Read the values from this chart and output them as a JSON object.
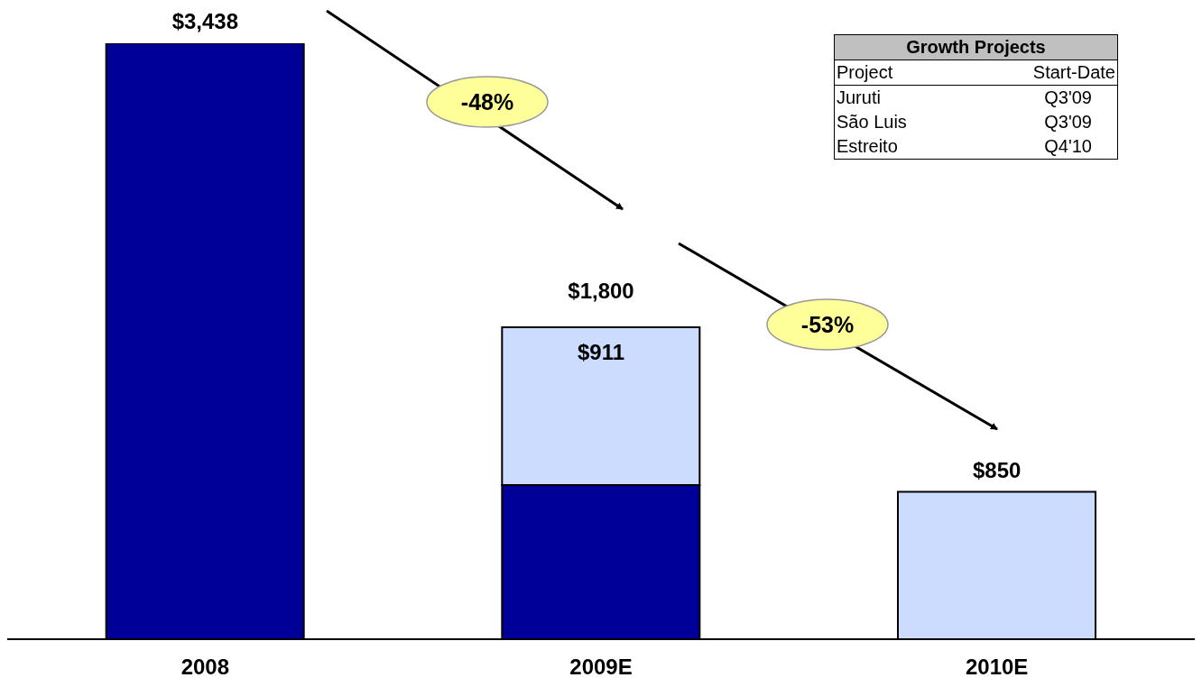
{
  "chart_data": [
    {
      "type": "bar",
      "stacked": true,
      "categories": [
        "2008",
        "2009E",
        "2010E"
      ],
      "series": [
        {
          "color": "#000099",
          "values": [
            3438,
            889,
            null
          ],
          "value_labels": [
            "$3,438",
            null,
            null
          ]
        },
        {
          "color": "#ccdcff",
          "values": [
            null,
            911,
            850
          ],
          "value_labels": [
            null,
            "$911",
            "$850"
          ]
        }
      ],
      "totals": [
        null,
        "$1,800",
        null
      ],
      "annotations": [
        "-48%",
        "-53%"
      ]
    },
    {
      "type": "other",
      "title": "Growth Projects",
      "annotations": [
        "Project",
        "Start-Date",
        "Juruti",
        "Q3'09",
        "São Luis",
        "Q3'09",
        "Estreito",
        "Q4'10"
      ]
    }
  ]
}
